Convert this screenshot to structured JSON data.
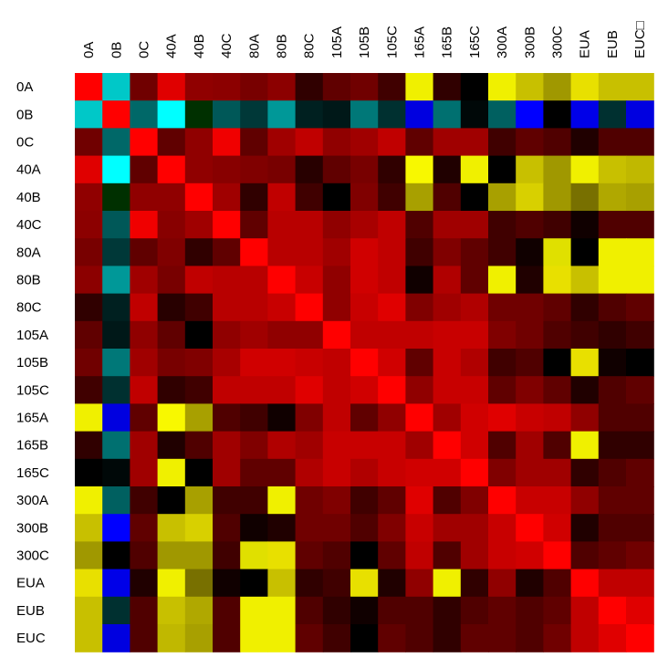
{
  "chart_data": {
    "type": "heatmap",
    "title": "",
    "xlabel": "",
    "ylabel": "",
    "x_labels": [
      "0A",
      "0B",
      "0C",
      "40A",
      "40B",
      "40C",
      "80A",
      "80B",
      "80C",
      "105A",
      "105B",
      "105C",
      "165A",
      "165B",
      "165C",
      "300A",
      "300B",
      "300C",
      "EUA",
      "EUB",
      "EUC□"
    ],
    "y_labels": [
      "0A",
      "0B",
      "0C",
      "40A",
      "40B",
      "40C",
      "80A",
      "80B",
      "80C",
      "105A",
      "105B",
      "105C",
      "165A",
      "165B",
      "165C",
      "300A",
      "300B",
      "300C",
      "EUA",
      "EUB",
      "EUC"
    ],
    "color_scale": {
      "low": "#00ffff",
      "mid_low": "#000000",
      "high_red": "#ff0000",
      "high_yellow": "#ffff00"
    },
    "cell_colors": [
      [
        "#ff0000",
        "#00c8c8",
        "#700000",
        "#e00000",
        "#900000",
        "#8c0000",
        "#780000",
        "#8c0000",
        "#300000",
        "#600000",
        "#700000",
        "#400000",
        "#f0f000",
        "#300000",
        "#000000",
        "#f0f000",
        "#c8c000",
        "#a09800",
        "#e8e000",
        "#c8c000",
        "#c8c000"
      ],
      [
        "#00c8c8",
        "#ff0000",
        "#006868",
        "#00ffff",
        "#003000",
        "#005858",
        "#003838",
        "#009898",
        "#002020",
        "#001818",
        "#007878",
        "#003030",
        "#0000e0",
        "#007070",
        "#000808",
        "#006060",
        "#0000ff",
        "#000000",
        "#0000e8",
        "#003030",
        "#0000e0"
      ],
      [
        "#700000",
        "#006868",
        "#ff0000",
        "#600000",
        "#900000",
        "#f00000",
        "#600000",
        "#a00000",
        "#c00000",
        "#900000",
        "#a00000",
        "#c00000",
        "#600000",
        "#a00000",
        "#a00000",
        "#400000",
        "#600000",
        "#500000",
        "#200000",
        "#500000",
        "#500000"
      ],
      [
        "#e00000",
        "#00ffff",
        "#600000",
        "#ff0000",
        "#900000",
        "#880000",
        "#800000",
        "#780000",
        "#280000",
        "#600000",
        "#780000",
        "#300000",
        "#f8f800",
        "#200000",
        "#f0f000",
        "#000000",
        "#c8c000",
        "#a09800",
        "#f0f000",
        "#c8c000",
        "#c0b800"
      ],
      [
        "#900000",
        "#003000",
        "#900000",
        "#900000",
        "#ff0000",
        "#a00000",
        "#300000",
        "#c00000",
        "#400000",
        "#000000",
        "#800000",
        "#400000",
        "#a8a000",
        "#500000",
        "#000000",
        "#a8a000",
        "#d8d000",
        "#a09800",
        "#787000",
        "#b0a800",
        "#a8a000"
      ],
      [
        "#8c0000",
        "#005858",
        "#f00000",
        "#880000",
        "#a00000",
        "#ff0000",
        "#600000",
        "#b80000",
        "#b80000",
        "#900000",
        "#a80000",
        "#c00000",
        "#500000",
        "#a00000",
        "#a00000",
        "#400000",
        "#500000",
        "#400000",
        "#100000",
        "#500000",
        "#500000"
      ],
      [
        "#780000",
        "#003838",
        "#600000",
        "#800000",
        "#300000",
        "#600000",
        "#ff0000",
        "#b80000",
        "#b80000",
        "#a00000",
        "#d00000",
        "#c00000",
        "#400000",
        "#800000",
        "#600000",
        "#400000",
        "#100000",
        "#e0e000",
        "#000000",
        "#f0f000",
        "#f0f000"
      ],
      [
        "#8c0000",
        "#009898",
        "#a00000",
        "#780000",
        "#c00000",
        "#b80000",
        "#b80000",
        "#ff0000",
        "#c80000",
        "#900000",
        "#d00000",
        "#c00000",
        "#100000",
        "#b00000",
        "#600000",
        "#f0f000",
        "#200000",
        "#e8e000",
        "#c8c000",
        "#f0f000",
        "#f0f000"
      ],
      [
        "#300000",
        "#002020",
        "#c00000",
        "#280000",
        "#400000",
        "#b80000",
        "#b80000",
        "#c80000",
        "#ff0000",
        "#900000",
        "#c80000",
        "#e00000",
        "#800000",
        "#a00000",
        "#b00000",
        "#700000",
        "#700000",
        "#600000",
        "#300000",
        "#500000",
        "#600000"
      ],
      [
        "#600000",
        "#001818",
        "#900000",
        "#600000",
        "#000000",
        "#900000",
        "#a00000",
        "#900000",
        "#900000",
        "#ff0000",
        "#c00000",
        "#c00000",
        "#c00000",
        "#c80000",
        "#c80000",
        "#800000",
        "#700000",
        "#500000",
        "#400000",
        "#300000",
        "#400000"
      ],
      [
        "#700000",
        "#007878",
        "#a00000",
        "#780000",
        "#800000",
        "#a80000",
        "#d00000",
        "#d00000",
        "#c80000",
        "#c00000",
        "#ff0000",
        "#d00000",
        "#600000",
        "#c80000",
        "#b00000",
        "#400000",
        "#500000",
        "#000000",
        "#e8e000",
        "#100000",
        "#000000"
      ],
      [
        "#400000",
        "#003030",
        "#c00000",
        "#300000",
        "#400000",
        "#c00000",
        "#c00000",
        "#c00000",
        "#e00000",
        "#c00000",
        "#d00000",
        "#ff0000",
        "#900000",
        "#c80000",
        "#c80000",
        "#600000",
        "#800000",
        "#600000",
        "#200000",
        "#500000",
        "#600000"
      ],
      [
        "#f0f000",
        "#0000e0",
        "#600000",
        "#f8f800",
        "#a8a000",
        "#500000",
        "#400000",
        "#100000",
        "#800000",
        "#c00000",
        "#600000",
        "#900000",
        "#ff0000",
        "#a00000",
        "#d00000",
        "#e00000",
        "#c80000",
        "#c00000",
        "#900000",
        "#500000",
        "#500000"
      ],
      [
        "#300000",
        "#007070",
        "#a00000",
        "#200000",
        "#500000",
        "#a00000",
        "#800000",
        "#b00000",
        "#a00000",
        "#c80000",
        "#c80000",
        "#c80000",
        "#a00000",
        "#ff0000",
        "#d00000",
        "#500000",
        "#a00000",
        "#500000",
        "#f0f000",
        "#300000",
        "#300000"
      ],
      [
        "#000000",
        "#000808",
        "#a00000",
        "#f0f000",
        "#000000",
        "#a00000",
        "#600000",
        "#600000",
        "#b00000",
        "#c80000",
        "#b00000",
        "#c80000",
        "#d00000",
        "#d00000",
        "#ff0000",
        "#800000",
        "#a00000",
        "#a00000",
        "#300000",
        "#500000",
        "#600000"
      ],
      [
        "#f0f000",
        "#006060",
        "#400000",
        "#000000",
        "#a8a000",
        "#400000",
        "#400000",
        "#f0f000",
        "#700000",
        "#800000",
        "#400000",
        "#600000",
        "#e00000",
        "#500000",
        "#800000",
        "#ff0000",
        "#c80000",
        "#c80000",
        "#900000",
        "#600000",
        "#600000"
      ],
      [
        "#c8c000",
        "#0000ff",
        "#600000",
        "#c8c000",
        "#d8d000",
        "#500000",
        "#100000",
        "#200000",
        "#700000",
        "#700000",
        "#500000",
        "#800000",
        "#c80000",
        "#a00000",
        "#a00000",
        "#c80000",
        "#ff0000",
        "#d00000",
        "#200000",
        "#500000",
        "#500000"
      ],
      [
        "#a09800",
        "#000000",
        "#500000",
        "#a09800",
        "#a09800",
        "#400000",
        "#e0e000",
        "#e8e000",
        "#600000",
        "#500000",
        "#000000",
        "#600000",
        "#c00000",
        "#500000",
        "#a00000",
        "#c80000",
        "#d00000",
        "#ff0000",
        "#500000",
        "#600000",
        "#700000"
      ],
      [
        "#e8e000",
        "#0000e8",
        "#200000",
        "#f0f000",
        "#787000",
        "#100000",
        "#000000",
        "#c8c000",
        "#300000",
        "#400000",
        "#e8e000",
        "#200000",
        "#900000",
        "#f0f000",
        "#300000",
        "#900000",
        "#200000",
        "#500000",
        "#ff0000",
        "#c00000",
        "#c00000"
      ],
      [
        "#c8c000",
        "#003030",
        "#500000",
        "#c8c000",
        "#b0a800",
        "#500000",
        "#f0f000",
        "#f0f000",
        "#500000",
        "#300000",
        "#100000",
        "#500000",
        "#500000",
        "#300000",
        "#500000",
        "#600000",
        "#500000",
        "#600000",
        "#c00000",
        "#ff0000",
        "#e00000"
      ],
      [
        "#c8c000",
        "#0000e0",
        "#500000",
        "#c0b800",
        "#a8a000",
        "#500000",
        "#f0f000",
        "#f0f000",
        "#600000",
        "#400000",
        "#000000",
        "#600000",
        "#500000",
        "#300000",
        "#600000",
        "#600000",
        "#500000",
        "#700000",
        "#c00000",
        "#e00000",
        "#ff0000"
      ]
    ]
  }
}
